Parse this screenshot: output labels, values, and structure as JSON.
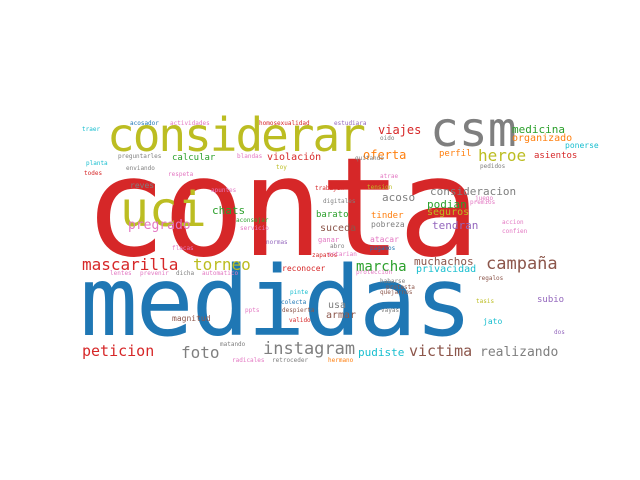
{
  "palette": {
    "red": "#d62728",
    "blue": "#1f77b4",
    "olive": "#bcbd22",
    "gray": "#7f7f7f",
    "brown": "#8c564b",
    "green": "#2ca02c",
    "orange": "#ff7f0e",
    "pink": "#e377c2",
    "cyan": "#17becf",
    "purple": "#9467bd"
  },
  "words": [
    {
      "text": "conta",
      "color": "red"
    },
    {
      "text": "medidas",
      "color": "blue"
    },
    {
      "text": "considerar",
      "color": "olive"
    },
    {
      "text": "csm",
      "color": "gray"
    },
    {
      "text": "uci",
      "color": "olive"
    },
    {
      "text": "mascarilla",
      "color": "red"
    },
    {
      "text": "instagram",
      "color": "gray"
    },
    {
      "text": "campaña",
      "color": "brown"
    },
    {
      "text": "peticion",
      "color": "red"
    },
    {
      "text": "victima",
      "color": "brown"
    },
    {
      "text": "realizando",
      "color": "gray"
    },
    {
      "text": "heroe",
      "color": "olive"
    },
    {
      "text": "torneo",
      "color": "olive"
    },
    {
      "text": "foto",
      "color": "gray"
    },
    {
      "text": "marcha",
      "color": "green"
    },
    {
      "text": "pregrado",
      "color": "pink"
    },
    {
      "text": "medicina",
      "color": "green"
    },
    {
      "text": "viajes",
      "color": "red"
    },
    {
      "text": "oferta",
      "color": "orange"
    },
    {
      "text": "organizado",
      "color": "orange"
    },
    {
      "text": "violación",
      "color": "red"
    },
    {
      "text": "consideracion",
      "color": "gray"
    },
    {
      "text": "chats",
      "color": "green"
    },
    {
      "text": "acoso",
      "color": "gray"
    },
    {
      "text": "tendran",
      "color": "purple"
    },
    {
      "text": "podian",
      "color": "green"
    },
    {
      "text": "seguros",
      "color": "olive"
    },
    {
      "text": "muchachos",
      "color": "brown"
    },
    {
      "text": "privacidad",
      "color": "cyan"
    },
    {
      "text": "suceda",
      "color": "brown"
    },
    {
      "text": "pudiste",
      "color": "cyan"
    },
    {
      "text": "calcular",
      "color": "green"
    },
    {
      "text": "perfil",
      "color": "orange"
    },
    {
      "text": "asientos",
      "color": "red"
    },
    {
      "text": "tinder",
      "color": "orange"
    },
    {
      "text": "barato",
      "color": "green"
    },
    {
      "text": "reves",
      "color": "gray"
    },
    {
      "text": "usa",
      "color": "gray"
    },
    {
      "text": "armar",
      "color": "brown"
    },
    {
      "text": "magnitud",
      "color": "brown"
    },
    {
      "text": "subio",
      "color": "purple"
    },
    {
      "text": "jato",
      "color": "cyan"
    },
    {
      "text": "reconocer",
      "color": "red"
    },
    {
      "text": "atacar",
      "color": "pink"
    },
    {
      "text": "ganar",
      "color": "pink"
    },
    {
      "text": "pobreza",
      "color": "gray"
    },
    {
      "text": "ponerse",
      "color": "cyan"
    },
    {
      "text": "homosexualidad",
      "color": "red"
    },
    {
      "text": "estudiara",
      "color": "purple"
    },
    {
      "text": "acosador",
      "color": "blue"
    },
    {
      "text": "actividades",
      "color": "pink"
    },
    {
      "text": "traer",
      "color": "cyan"
    },
    {
      "text": "planta",
      "color": "cyan"
    },
    {
      "text": "preguntarles",
      "color": "gray"
    },
    {
      "text": "enviando",
      "color": "gray"
    },
    {
      "text": "todes",
      "color": "red"
    },
    {
      "text": "respeta",
      "color": "pink"
    },
    {
      "text": "blandas",
      "color": "pink"
    },
    {
      "text": "oido",
      "color": "gray"
    },
    {
      "text": "quitando",
      "color": "gray"
    },
    {
      "text": "apuntes",
      "color": "pink"
    },
    {
      "text": "aconsejar",
      "color": "green"
    },
    {
      "text": "servicio",
      "color": "pink"
    },
    {
      "text": "trabajen",
      "color": "red"
    },
    {
      "text": "digitales",
      "color": "gray"
    },
    {
      "text": "tension",
      "color": "olive"
    },
    {
      "text": "juego",
      "color": "pink"
    },
    {
      "text": "accion",
      "color": "pink"
    },
    {
      "text": "confien",
      "color": "pink"
    },
    {
      "text": "flacas",
      "color": "pink"
    },
    {
      "text": "normas",
      "color": "purple"
    },
    {
      "text": "estarian",
      "color": "pink"
    },
    {
      "text": "lentes",
      "color": "pink"
    },
    {
      "text": "prevenir",
      "color": "pink"
    },
    {
      "text": "dicha",
      "color": "gray"
    },
    {
      "text": "automatico",
      "color": "pink"
    },
    {
      "text": "regalos",
      "color": "brown"
    },
    {
      "text": "habarse",
      "color": "gray"
    },
    {
      "text": "tasis",
      "color": "olive"
    },
    {
      "text": "pinte",
      "color": "cyan"
    },
    {
      "text": "colecta",
      "color": "blue"
    },
    {
      "text": "despierta",
      "color": "brown"
    },
    {
      "text": "valido",
      "color": "red"
    },
    {
      "text": "vayas",
      "color": "gray"
    },
    {
      "text": "ppts",
      "color": "pink"
    },
    {
      "text": "matando",
      "color": "gray"
    },
    {
      "text": "radicales",
      "color": "pink"
    },
    {
      "text": "retroceder",
      "color": "gray"
    },
    {
      "text": "hermano",
      "color": "orange"
    },
    {
      "text": "dos",
      "color": "purple"
    },
    {
      "text": "zapatos",
      "color": "red"
    },
    {
      "text": "abro",
      "color": "gray"
    },
    {
      "text": "pagamos",
      "color": "blue"
    },
    {
      "text": "protesta",
      "color": "brown"
    },
    {
      "text": "quejarnos",
      "color": "brown"
    },
    {
      "text": "proteccion",
      "color": "pink"
    },
    {
      "text": "premios",
      "color": "pink"
    },
    {
      "text": "atrae",
      "color": "pink"
    },
    {
      "text": "pedidos",
      "color": "gray"
    },
    {
      "text": "toy",
      "color": "olive"
    }
  ]
}
